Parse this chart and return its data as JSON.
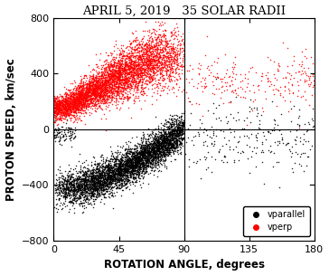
{
  "title": "APRIL 5, 2019   35 SOLAR RADII",
  "xlabel": "ROTATION ANGLE, degrees",
  "ylabel": "PROTON SPEED, km/sec",
  "xlim": [
    0,
    180
  ],
  "ylim": [
    -800,
    800
  ],
  "xticks": [
    0,
    45,
    90,
    135,
    180
  ],
  "yticks": [
    -800,
    -400,
    0,
    400,
    800
  ],
  "vline_x": 90,
  "hline_y": 0,
  "legend_labels": [
    "vparallel",
    "vperp"
  ],
  "legend_colors": [
    "black",
    "red"
  ],
  "black_dot_color": "black",
  "red_dot_color": "red",
  "dot_size": 1.2,
  "title_fontsize": 9.5,
  "axis_label_fontsize": 8.5,
  "tick_fontsize": 8,
  "legend_fontsize": 7,
  "seed": 42,
  "n_black_main": 5000,
  "n_red_main": 5000
}
